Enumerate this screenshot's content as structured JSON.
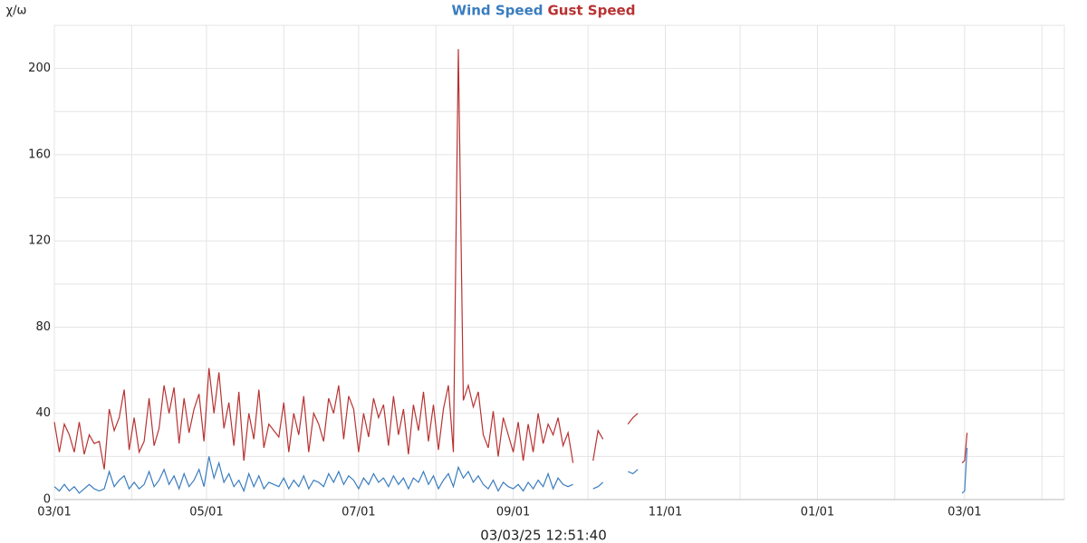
{
  "chart_data": {
    "type": "line",
    "ylabel": "χ/ω",
    "xlabel": "03/03/25 12:51:40",
    "xlim": [
      0,
      405
    ],
    "xticks": [
      {
        "value": 0,
        "label": "03/01"
      },
      {
        "value": 61,
        "label": "05/01"
      },
      {
        "value": 122,
        "label": "07/01"
      },
      {
        "value": 184,
        "label": "09/01"
      },
      {
        "value": 245,
        "label": "11/01"
      },
      {
        "value": 306,
        "label": "01/01"
      },
      {
        "value": 365,
        "label": "03/01"
      }
    ],
    "minor_xticks": [
      31,
      92,
      153,
      214,
      275,
      337,
      396
    ],
    "ylim": [
      0,
      220
    ],
    "yticks": [
      0,
      40,
      80,
      120,
      160,
      200
    ],
    "minor_yticks": [
      20,
      60,
      100,
      140,
      180,
      220
    ],
    "grid": true,
    "x": [
      0,
      2,
      4,
      6,
      8,
      10,
      12,
      14,
      16,
      18,
      20,
      22,
      24,
      26,
      28,
      30,
      32,
      34,
      36,
      38,
      40,
      42,
      44,
      46,
      48,
      50,
      52,
      54,
      56,
      58,
      60,
      62,
      64,
      66,
      68,
      70,
      72,
      74,
      76,
      78,
      80,
      82,
      84,
      86,
      88,
      90,
      92,
      94,
      96,
      98,
      100,
      102,
      104,
      106,
      108,
      110,
      112,
      114,
      116,
      118,
      120,
      122,
      124,
      126,
      128,
      130,
      132,
      134,
      136,
      138,
      140,
      142,
      144,
      146,
      148,
      150,
      152,
      154,
      156,
      158,
      160,
      162,
      164,
      166,
      168,
      170,
      172,
      174,
      176,
      178,
      180,
      182,
      184,
      186,
      188,
      190,
      192,
      194,
      196,
      198,
      200,
      202,
      204,
      206,
      208,
      212,
      216,
      218,
      220,
      226,
      230,
      232,
      234,
      300,
      364,
      365,
      366
    ],
    "series": [
      {
        "name": "Wind Speed",
        "color": "#3a7dbf",
        "values": [
          6,
          4,
          7,
          4,
          6,
          3,
          5,
          7,
          5,
          4,
          5,
          13,
          6,
          9,
          11,
          5,
          8,
          5,
          7,
          13,
          6,
          9,
          14,
          7,
          11,
          5,
          12,
          6,
          9,
          14,
          6,
          20,
          10,
          17,
          8,
          12,
          6,
          9,
          4,
          12,
          6,
          11,
          5,
          8,
          7,
          6,
          10,
          5,
          9,
          6,
          11,
          5,
          9,
          8,
          6,
          12,
          8,
          13,
          7,
          11,
          9,
          5,
          10,
          7,
          12,
          8,
          10,
          6,
          11,
          7,
          10,
          5,
          10,
          8,
          13,
          7,
          11,
          5,
          9,
          12,
          6,
          15,
          10,
          13,
          8,
          11,
          7,
          5,
          9,
          4,
          8,
          6,
          5,
          7,
          4,
          8,
          5,
          9,
          6,
          12,
          5,
          10,
          7,
          6,
          7,
          null,
          5,
          6,
          8,
          null,
          13,
          12,
          14,
          null,
          3,
          4,
          24
        ]
      },
      {
        "name": "Gust Speed",
        "color": "#b83232",
        "values": [
          36,
          22,
          35,
          30,
          22,
          36,
          21,
          30,
          26,
          27,
          14,
          42,
          32,
          38,
          51,
          23,
          38,
          22,
          27,
          47,
          25,
          33,
          53,
          40,
          52,
          26,
          47,
          31,
          42,
          49,
          27,
          61,
          40,
          59,
          33,
          45,
          25,
          50,
          18,
          40,
          28,
          51,
          24,
          35,
          32,
          29,
          45,
          22,
          40,
          30,
          48,
          22,
          40,
          35,
          27,
          47,
          40,
          53,
          28,
          48,
          42,
          22,
          40,
          29,
          47,
          38,
          44,
          25,
          48,
          30,
          42,
          21,
          44,
          32,
          50,
          27,
          44,
          23,
          42,
          53,
          22,
          209,
          46,
          53,
          43,
          50,
          30,
          24,
          41,
          20,
          38,
          30,
          22,
          36,
          18,
          35,
          22,
          40,
          26,
          35,
          30,
          38,
          25,
          31,
          17,
          null,
          18,
          32,
          28,
          null,
          35,
          38,
          40,
          null,
          17,
          18,
          31
        ]
      }
    ]
  }
}
